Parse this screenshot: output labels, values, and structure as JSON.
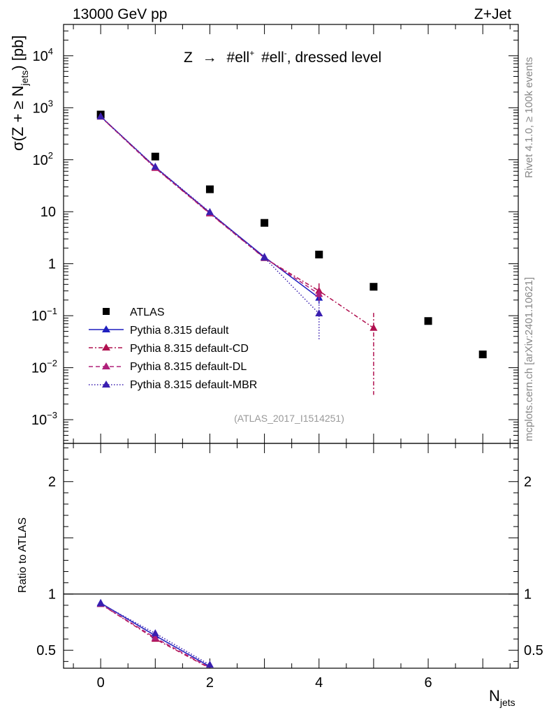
{
  "header": {
    "left": "13000 GeV pp",
    "right": "Z+Jet"
  },
  "side_labels": {
    "rivet": "Rivet 4.1.0, ≥ 100k events",
    "mcplots": "mcplots.cern.ch [arXiv:2401.10621]"
  },
  "colors": {
    "atlas": "#000000",
    "default": "#1f1fbf",
    "cd": "#b0104f",
    "dl": "#b0207a",
    "mbr": "#3a1fb0",
    "ref_label": "#999999"
  },
  "chart_data": [
    {
      "type": "scatter",
      "panel": "main",
      "title": "Z → #ell⁺ #ell⁻, dressed level",
      "title_parts": {
        "z": "Z",
        "arrow": "→",
        "ell": "#ell",
        "plus": "+",
        "minus": "-",
        "rest": ", dressed level"
      },
      "ylabel": "σ(Z + ≥ N_jets) [pb]",
      "ylabel_parts": {
        "sigma": "σ(Z + ≥ N",
        "sub": "jets",
        "end": ") [pb]"
      },
      "xlabel": "",
      "yscale": "log",
      "xlim": [
        -0.68,
        7.65
      ],
      "ylim": [
        0.00035,
        40000
      ],
      "yticks": [
        {
          "value": 0.001,
          "base": "10",
          "exp": "−3"
        },
        {
          "value": 0.01,
          "base": "10",
          "exp": "−2"
        },
        {
          "value": 0.1,
          "base": "10",
          "exp": "−1"
        },
        {
          "value": 1,
          "base": "1",
          "exp": ""
        },
        {
          "value": 10,
          "base": "10",
          "exp": ""
        },
        {
          "value": 100,
          "base": "10",
          "exp": "2"
        },
        {
          "value": 1000,
          "base": "10",
          "exp": "3"
        },
        {
          "value": 10000,
          "base": "10",
          "exp": "4"
        }
      ],
      "reference_label": "(ATLAS_2017_I1514251)",
      "legend_position": "lower-left",
      "series": [
        {
          "key": "atlas",
          "name": "ATLAS",
          "style": "square",
          "x": [
            0,
            1,
            2,
            3,
            4,
            5,
            6,
            7
          ],
          "y": [
            740,
            115,
            27,
            6.1,
            1.5,
            0.36,
            0.079,
            0.018
          ]
        },
        {
          "key": "default",
          "name": "Pythia 8.315 default",
          "style": "solid",
          "x": [
            0,
            1,
            2,
            3,
            4
          ],
          "y": [
            680,
            72,
            9.6,
            1.35,
            0.22
          ],
          "err": [
            0,
            0,
            0,
            0.15,
            0.05
          ]
        },
        {
          "key": "cd",
          "name": "Pythia 8.315 default-CD",
          "style": "dashdot",
          "x": [
            0,
            1,
            2,
            3,
            4,
            5
          ],
          "y": [
            670,
            69,
            9.2,
            1.28,
            0.3,
            0.058
          ],
          "err": [
            0,
            0,
            0,
            0.15,
            0.12,
            0.055
          ]
        },
        {
          "key": "dl",
          "name": "Pythia 8.315 default-DL",
          "style": "dashed",
          "x": [
            0,
            1,
            2,
            3,
            4
          ],
          "y": [
            672,
            70,
            9.3,
            1.3,
            0.26
          ],
          "err": [
            0,
            0,
            0,
            0.15,
            0.08
          ]
        },
        {
          "key": "mbr",
          "name": "Pythia 8.315 default-MBR",
          "style": "dotted",
          "x": [
            0,
            1,
            2,
            3,
            4
          ],
          "y": [
            676,
            73,
            9.8,
            1.3,
            0.11
          ],
          "err": [
            0,
            0,
            0,
            0.15,
            0.075
          ]
        }
      ]
    },
    {
      "type": "line",
      "panel": "ratio",
      "ylabel": "Ratio to ATLAS",
      "xlabel": "N_jets",
      "xlabel_parts": {
        "main": "N",
        "sub": "jets"
      },
      "xlim": [
        -0.68,
        7.65
      ],
      "ylim": [
        0.34,
        2.34
      ],
      "yticks": [
        0.5,
        1,
        2
      ],
      "xticks": [
        0,
        2,
        4,
        6
      ],
      "reference_line": 1,
      "series": [
        {
          "key": "default",
          "x": [
            0,
            1,
            2
          ],
          "y": [
            0.92,
            0.63,
            0.355
          ]
        },
        {
          "key": "cd",
          "x": [
            0,
            1,
            2
          ],
          "y": [
            0.91,
            0.6,
            0.34
          ]
        },
        {
          "key": "dl",
          "x": [
            0,
            1,
            2
          ],
          "y": [
            0.91,
            0.61,
            0.345
          ]
        },
        {
          "key": "mbr",
          "x": [
            0,
            1,
            2
          ],
          "y": [
            0.915,
            0.65,
            0.37
          ]
        }
      ]
    }
  ]
}
